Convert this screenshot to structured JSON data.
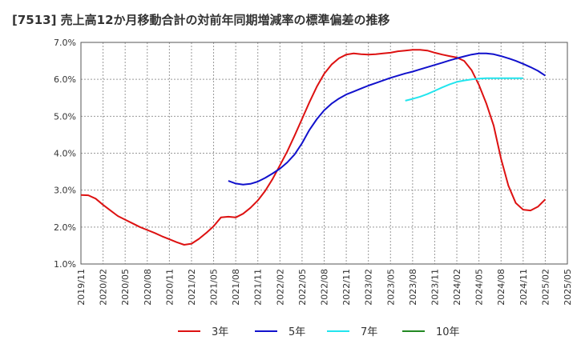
{
  "chart_data": {
    "type": "line",
    "title": "[7513]  売上高12か月移動合計の対前年同期増減率の標準偏差の推移",
    "xlabel": "",
    "ylabel": "",
    "ylim": [
      1.0,
      7.0
    ],
    "y_ticks": [
      "1.0%",
      "2.0%",
      "3.0%",
      "4.0%",
      "5.0%",
      "6.0%",
      "7.0%"
    ],
    "x_ticks": [
      "2019/11",
      "2020/02",
      "2020/05",
      "2020/08",
      "2020/11",
      "2021/02",
      "2021/05",
      "2021/08",
      "2021/11",
      "2022/02",
      "2022/05",
      "2022/08",
      "2022/11",
      "2023/02",
      "2023/05",
      "2023/08",
      "2023/11",
      "2024/02",
      "2024/05",
      "2024/08",
      "2024/11",
      "2025/02",
      "2025/05"
    ],
    "grid": true,
    "legend_position": "bottom",
    "series": [
      {
        "name": "3年",
        "color": "#dd1111",
        "start": "2019/11",
        "values": [
          2.87,
          2.86,
          2.77,
          2.6,
          2.45,
          2.3,
          2.2,
          2.1,
          2.0,
          1.92,
          1.84,
          1.75,
          1.67,
          1.59,
          1.52,
          1.55,
          1.68,
          1.84,
          2.02,
          2.26,
          2.28,
          2.26,
          2.36,
          2.52,
          2.72,
          2.98,
          3.3,
          3.67,
          4.05,
          4.48,
          4.93,
          5.38,
          5.8,
          6.15,
          6.4,
          6.57,
          6.67,
          6.7,
          6.68,
          6.67,
          6.68,
          6.7,
          6.72,
          6.76,
          6.78,
          6.8,
          6.8,
          6.78,
          6.72,
          6.67,
          6.63,
          6.59,
          6.5,
          6.25,
          5.85,
          5.35,
          4.75,
          3.85,
          3.12,
          2.65,
          2.47,
          2.45,
          2.55,
          2.75
        ]
      },
      {
        "name": "5年",
        "color": "#1111cc",
        "start": "2021/07",
        "values": [
          3.25,
          3.18,
          3.15,
          3.17,
          3.23,
          3.33,
          3.45,
          3.58,
          3.75,
          3.97,
          4.27,
          4.63,
          4.92,
          5.16,
          5.34,
          5.48,
          5.59,
          5.67,
          5.75,
          5.83,
          5.9,
          5.97,
          6.04,
          6.1,
          6.16,
          6.21,
          6.27,
          6.33,
          6.39,
          6.45,
          6.51,
          6.57,
          6.62,
          6.67,
          6.7,
          6.7,
          6.68,
          6.63,
          6.57,
          6.5,
          6.42,
          6.33,
          6.23,
          6.1
        ]
      },
      {
        "name": "7年",
        "color": "#22e5ee",
        "start": "2023/07",
        "values": [
          5.42,
          5.47,
          5.53,
          5.6,
          5.69,
          5.78,
          5.86,
          5.93,
          5.97,
          6.0,
          6.02,
          6.03,
          6.03,
          6.03,
          6.03,
          6.03,
          6.03
        ]
      },
      {
        "name": "10年",
        "color": "#228822",
        "start": "2023/07",
        "values": []
      }
    ]
  }
}
